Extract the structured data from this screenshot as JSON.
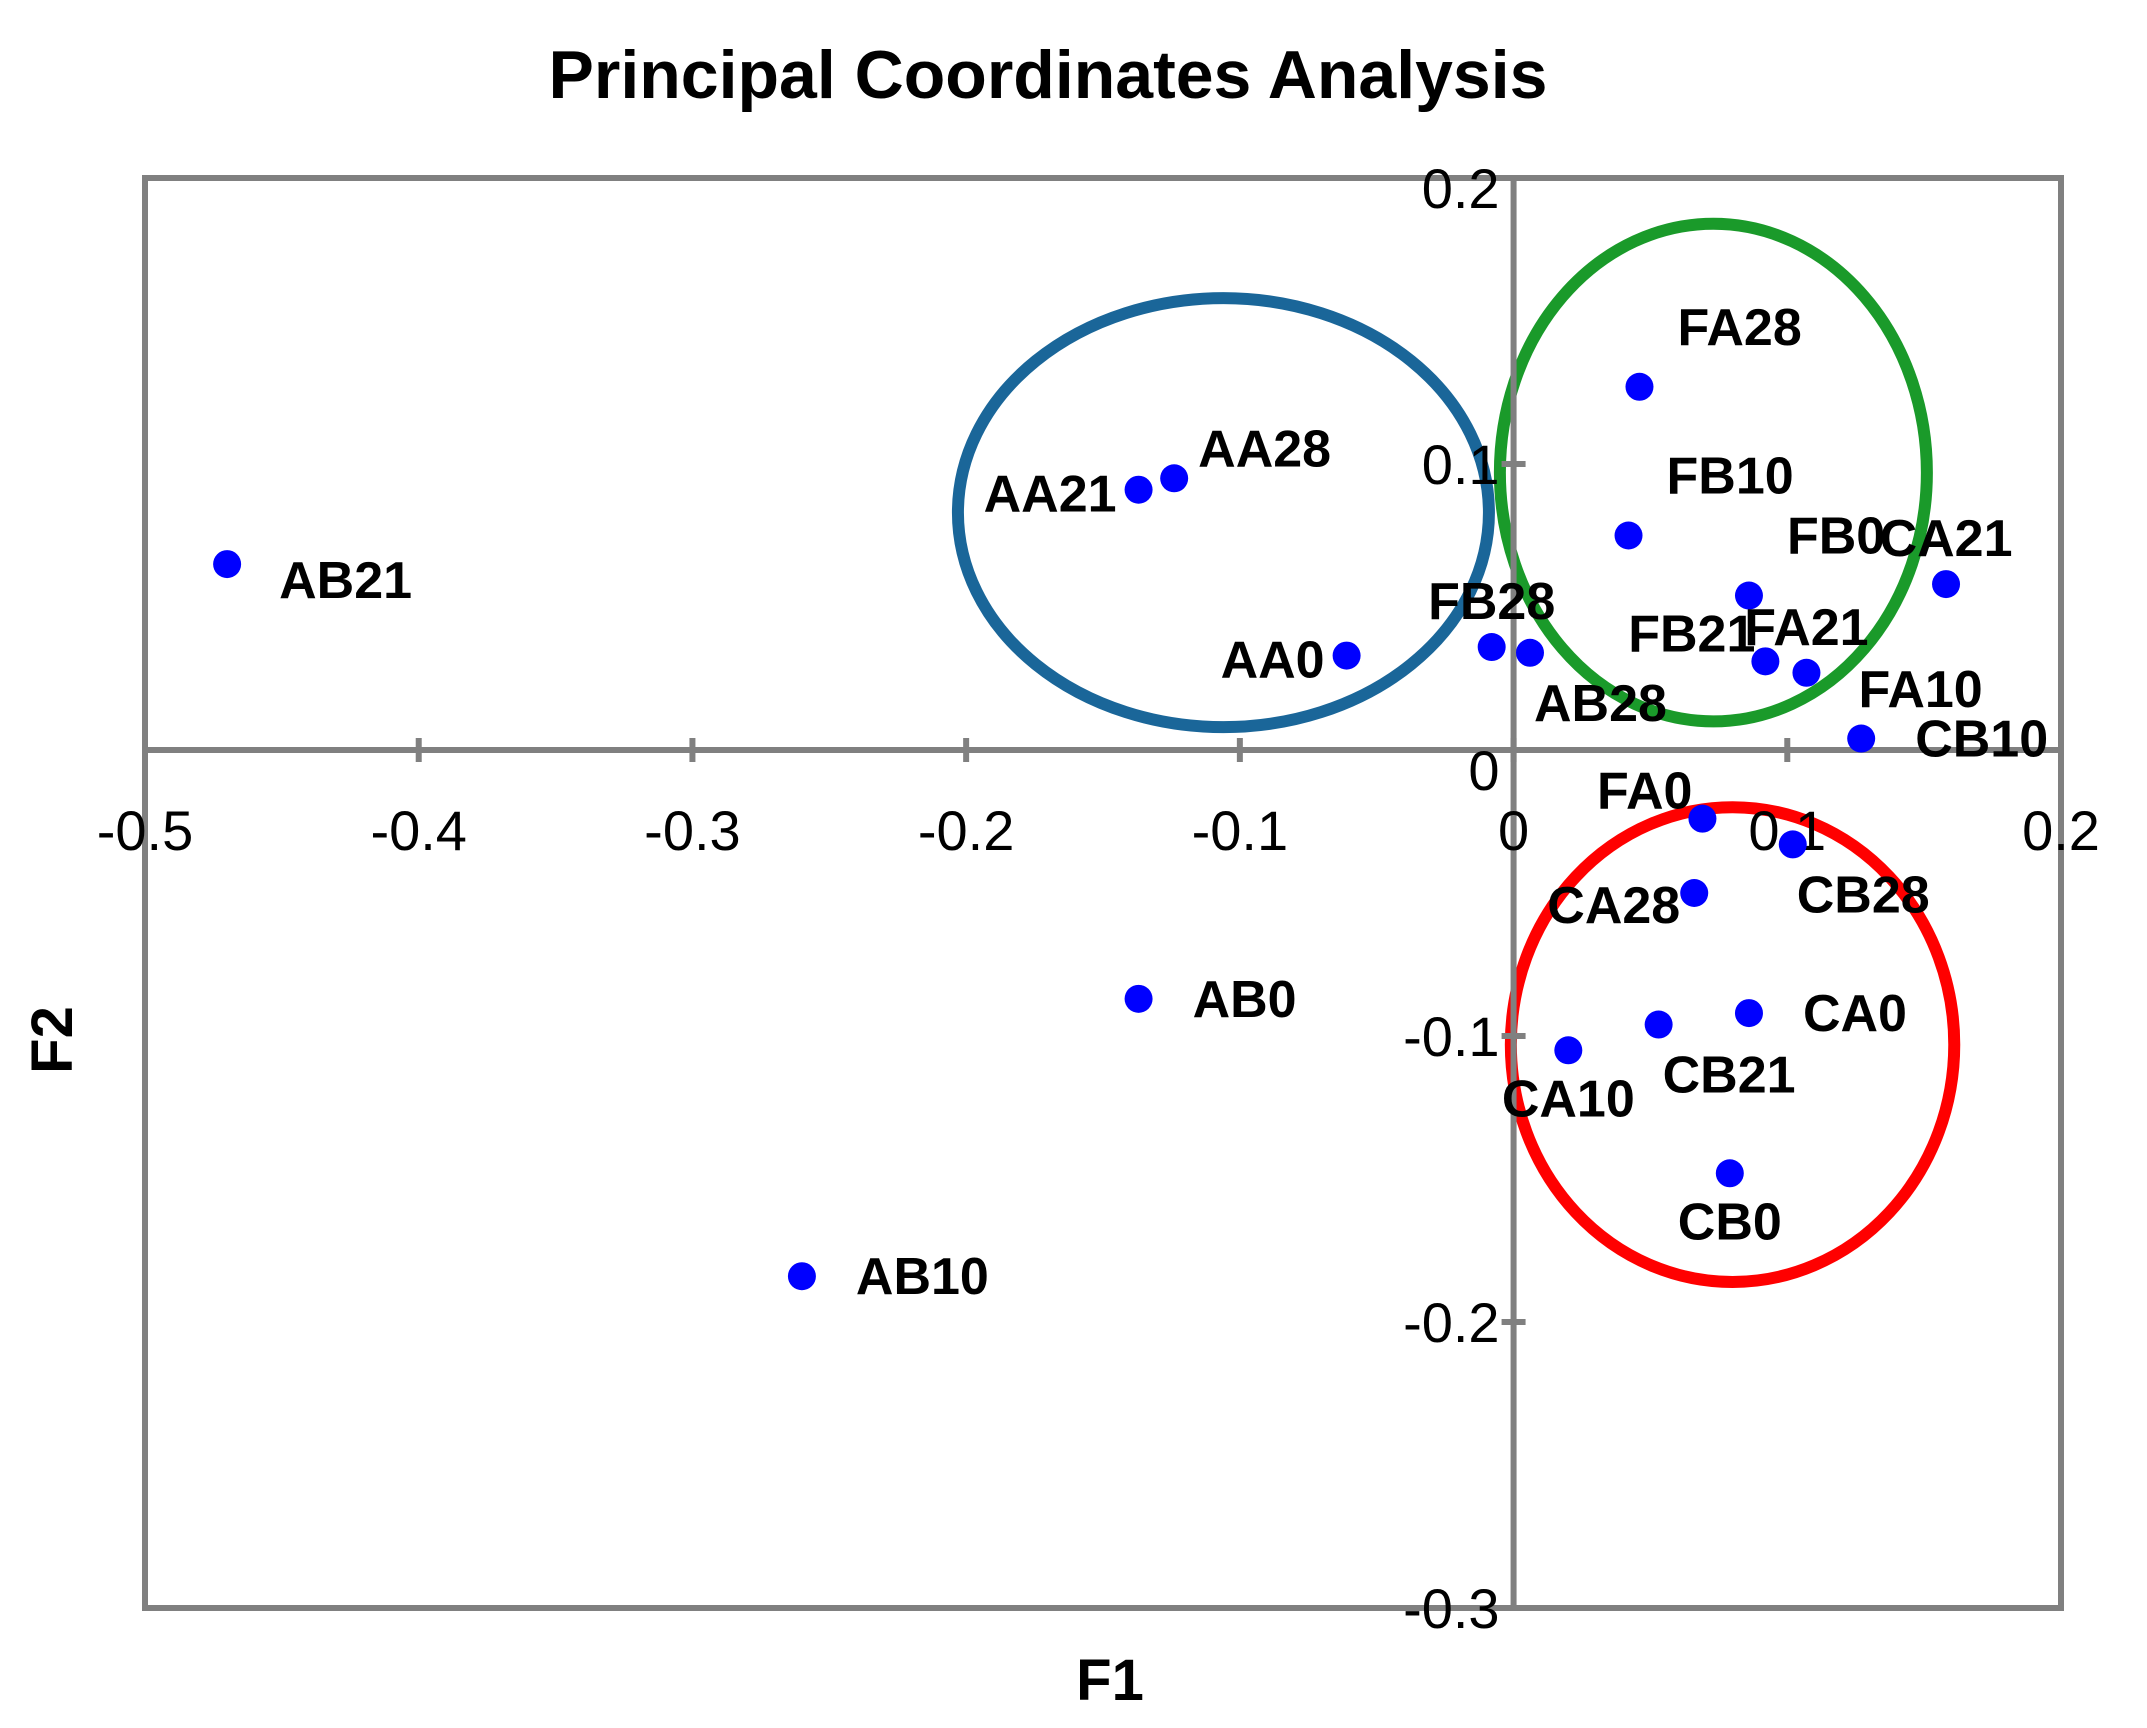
{
  "chart_data": {
    "type": "scatter",
    "title": "Principal Coordinates Analysis",
    "xlabel": "F1",
    "ylabel": "F2",
    "xlim": [
      -0.5,
      0.2
    ],
    "ylim": [
      -0.3,
      0.2
    ],
    "xticks": [
      -0.5,
      -0.4,
      -0.3,
      -0.2,
      -0.1,
      0,
      0.1,
      0.2
    ],
    "xtick_labels": [
      "-0.5",
      "-0.4",
      "-0.3",
      "-0.2",
      "-0.1",
      "0",
      "0.1",
      "0.2"
    ],
    "yticks": [
      0.2,
      0.1,
      0,
      -0.1,
      -0.2,
      -0.3
    ],
    "ytick_labels": [
      "0.2",
      "0.1",
      "0",
      "-0.1",
      "-0.2",
      "-0.3"
    ],
    "grid": false,
    "marker_color": "#0000ff",
    "axis_color": "#808080",
    "points": [
      {
        "label": "AB21",
        "x": -0.47,
        "y": 0.065,
        "label_pos": "right-below"
      },
      {
        "label": "AA21",
        "x": -0.137,
        "y": 0.091,
        "label_pos": "left"
      },
      {
        "label": "AA28",
        "x": -0.124,
        "y": 0.095,
        "label_pos": "right-above"
      },
      {
        "label": "AA0",
        "x": -0.061,
        "y": 0.033,
        "label_pos": "left"
      },
      {
        "label": "FB28",
        "x": -0.008,
        "y": 0.036,
        "label_pos": "above"
      },
      {
        "label": "AB28",
        "x": 0.006,
        "y": 0.034,
        "label_pos": "below-right"
      },
      {
        "label": "FA28",
        "x": 0.046,
        "y": 0.127,
        "label_pos": "above-right"
      },
      {
        "label": "FB10",
        "x": 0.042,
        "y": 0.075,
        "label_pos": "above-right"
      },
      {
        "label": "FB0",
        "x": 0.086,
        "y": 0.054,
        "label_pos": "above-right"
      },
      {
        "label": "CA21",
        "x": 0.158,
        "y": 0.058,
        "label_pos": "above"
      },
      {
        "label": "FB21",
        "x": 0.092,
        "y": 0.031,
        "label_pos": "left-above"
      },
      {
        "label": "FA21",
        "x": 0.107,
        "y": 0.027,
        "label_pos": "above"
      },
      {
        "label": "FA10",
        "x": 0.107,
        "y": 0.027,
        "label_pos": "right-below"
      },
      {
        "label": "CB10",
        "x": 0.127,
        "y": 0.004,
        "label_pos": "right"
      },
      {
        "label": "FA0",
        "x": 0.069,
        "y": -0.024,
        "label_pos": "above-left"
      },
      {
        "label": "CB28",
        "x": 0.102,
        "y": -0.033,
        "label_pos": "below-right"
      },
      {
        "label": "CA28",
        "x": 0.066,
        "y": -0.05,
        "label_pos": "left-below"
      },
      {
        "label": "AB0",
        "x": -0.137,
        "y": -0.087,
        "label_pos": "right"
      },
      {
        "label": "CA0",
        "x": 0.086,
        "y": -0.092,
        "label_pos": "right"
      },
      {
        "label": "CB21",
        "x": 0.053,
        "y": -0.096,
        "label_pos": "below-right"
      },
      {
        "label": "CA10",
        "x": 0.02,
        "y": -0.105,
        "label_pos": "below"
      },
      {
        "label": "CB0",
        "x": 0.079,
        "y": -0.148,
        "label_pos": "below"
      },
      {
        "label": "AB10",
        "x": -0.26,
        "y": -0.184,
        "label_pos": "right"
      }
    ],
    "groups": [
      {
        "name": "blue-cluster",
        "color": "#1a6699",
        "cx": -0.106,
        "cy": 0.083,
        "rx": 0.097,
        "ry": 0.075
      },
      {
        "name": "green-cluster",
        "color": "#1a9a2a",
        "cx": 0.073,
        "cy": 0.097,
        "rx": 0.078,
        "ry": 0.087
      },
      {
        "name": "red-cluster",
        "color": "#ff0000",
        "cx": 0.08,
        "cy": -0.103,
        "rx": 0.081,
        "ry": 0.083
      }
    ]
  }
}
